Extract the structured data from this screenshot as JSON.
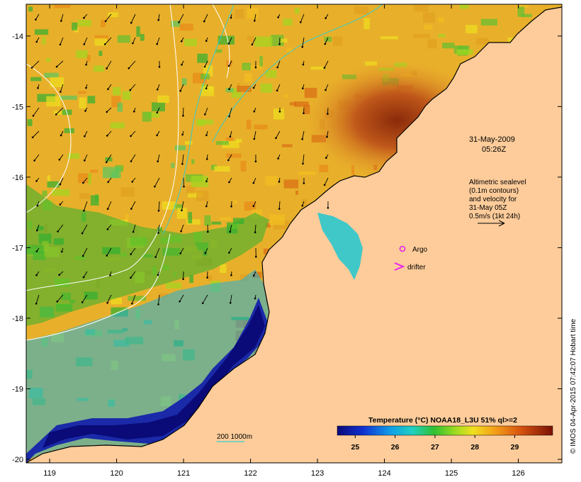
{
  "map": {
    "lon_ticks": [
      "119",
      "120",
      "121",
      "122",
      "123",
      "124",
      "125",
      "126"
    ],
    "lat_ticks": [
      "-14",
      "-15",
      "-16",
      "-17",
      "-18",
      "-19",
      "-20"
    ],
    "lon_range": [
      118.65,
      126.65
    ],
    "lat_range": [
      -20.05,
      -13.55
    ],
    "land_color": "#fdcc9a",
    "sea_deep_color": "#1a2aa8"
  },
  "annotations": {
    "date": "31-May-2009",
    "time": "05:26Z",
    "altimetry": [
      "Altimetric sealevel",
      "(0.1m contours)",
      "and velocity for",
      "31-May 05Z",
      "0.5m/s (1kt 24h)"
    ],
    "argo_label": "Argo",
    "drifter_label": "drifter",
    "bathy_label": "200  1000m",
    "credit": "© IMOS 04-Apr-2015 07:42:07 Hobart time"
  },
  "legend": {
    "title": "Temperature (°C) NOAA18_L3U 51% ql>=2",
    "ticks": [
      "25",
      "26",
      "27",
      "28",
      "29"
    ]
  },
  "colors": {
    "argo": "#ee22ee",
    "drifter": "#ee22ee",
    "contour": "#ffffff",
    "bathy": "#33cccc"
  }
}
